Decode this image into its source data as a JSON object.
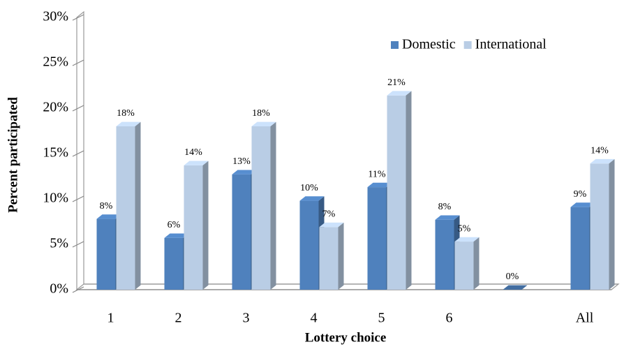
{
  "chart_data": {
    "type": "bar3d",
    "x_label": "Lottery choice",
    "y_label": "Percent participated",
    "categories": [
      "1",
      "2",
      "3",
      "4",
      "5",
      "6",
      null,
      "All"
    ],
    "series": [
      {
        "name": "Domestic",
        "color": "#4f81bd",
        "values": [
          7.8,
          5.7,
          12.7,
          9.8,
          11.3,
          7.7,
          0,
          9.1
        ],
        "value_labels": [
          "8%",
          "6%",
          "13%",
          "10%",
          "11%",
          "8%",
          "0%",
          "9%"
        ]
      },
      {
        "name": "International",
        "color": "#b9cde5",
        "values": [
          18.0,
          13.7,
          18.0,
          6.9,
          21.4,
          5.3,
          null,
          13.9
        ],
        "value_labels": [
          "18%",
          "14%",
          "18%",
          "7%",
          "21%",
          "5%",
          null,
          "14%"
        ]
      }
    ],
    "ylim": [
      0,
      30
    ],
    "yticks": [
      {
        "value": 0,
        "label": "0%"
      },
      {
        "value": 5,
        "label": "5%"
      },
      {
        "value": 10,
        "label": "10%"
      },
      {
        "value": 15,
        "label": "15%"
      },
      {
        "value": 20,
        "label": "20%"
      },
      {
        "value": 25,
        "label": "25%"
      },
      {
        "value": 30,
        "label": "30%"
      }
    ],
    "legend": "top-right"
  }
}
